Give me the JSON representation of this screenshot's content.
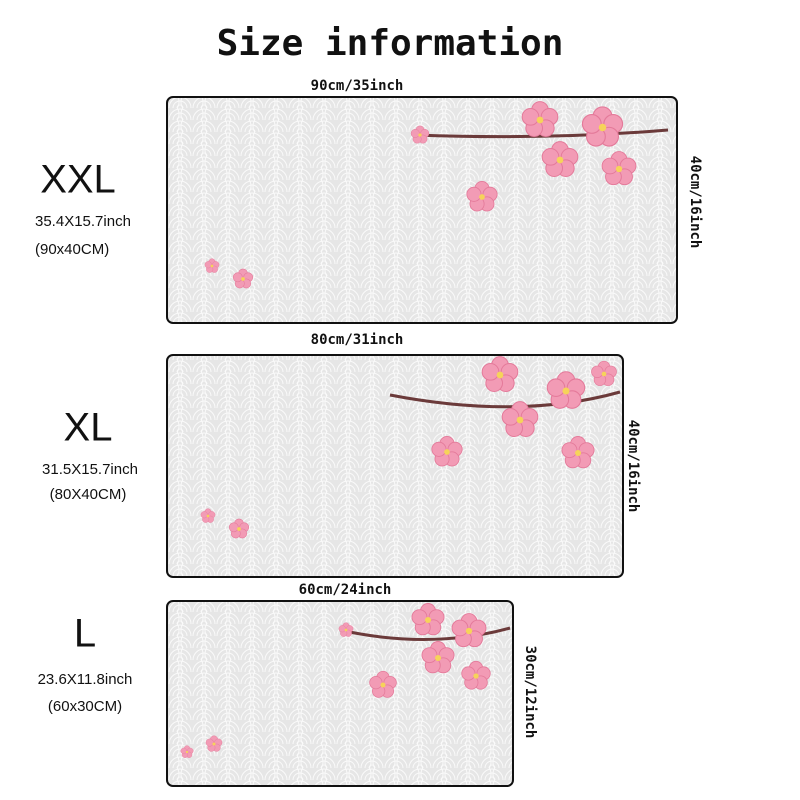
{
  "title": "Size information",
  "sizes": [
    {
      "name": "XXL",
      "inch": "35.4X15.7inch",
      "cm": "(90x40CM)",
      "width": "90cm/35inch",
      "height": "40cm/16inch"
    },
    {
      "name": "XL",
      "inch": "31.5X15.7inch",
      "cm": "(80X40CM)",
      "width": "80cm/31inch",
      "height": "40cm/16inch"
    },
    {
      "name": "L",
      "inch": "23.6X11.8inch",
      "cm": "(60x30CM)",
      "width": "60cm/24inch",
      "height": "30cm/12inch"
    }
  ]
}
